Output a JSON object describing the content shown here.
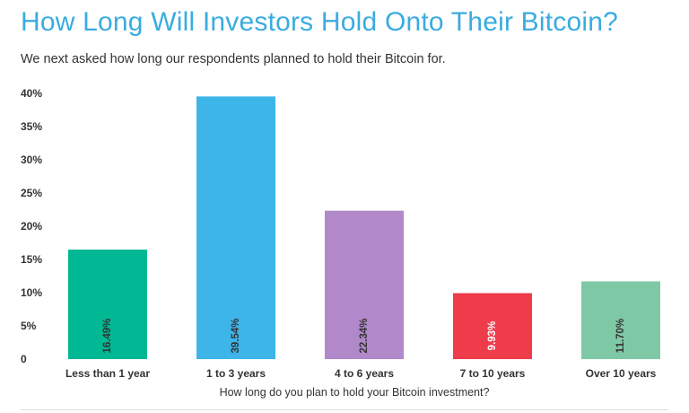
{
  "header": {
    "title": "How Long Will Investors Hold Onto Their Bitcoin?",
    "subtitle": "We next asked how long our respondents planned to hold their Bitcoin for."
  },
  "chart_data": {
    "type": "bar",
    "title": "How Long Will Investors Hold Onto Their Bitcoin?",
    "subtitle": "We next asked how long our respondents planned to hold their Bitcoin for.",
    "xlabel": "How long do you plan to hold your Bitcoin investment?",
    "ylabel": "",
    "categories": [
      "Less than 1 year",
      "1 to 3 years",
      "4 to 6 years",
      "7 to 10 years",
      "Over 10 years"
    ],
    "values": [
      16.49,
      39.54,
      22.34,
      9.93,
      11.7
    ],
    "data_labels": [
      "16.49%",
      "39.54%",
      "22.34%",
      "9.93%",
      "11.70%"
    ],
    "colors": [
      "#00b894",
      "#3db5e8",
      "#b188c9",
      "#ee3c4b",
      "#7fc8a6"
    ],
    "label_colors": [
      "#333333",
      "#333333",
      "#333333",
      "#ffffff",
      "#333333"
    ],
    "ylim": [
      0,
      40
    ],
    "yticks": [
      0,
      5,
      10,
      15,
      20,
      25,
      30,
      35,
      40
    ],
    "ytick_labels": [
      "0",
      "5%",
      "10%",
      "15%",
      "20%",
      "25%",
      "30%",
      "35%",
      "40%"
    ],
    "grid": false,
    "legend": "none"
  }
}
